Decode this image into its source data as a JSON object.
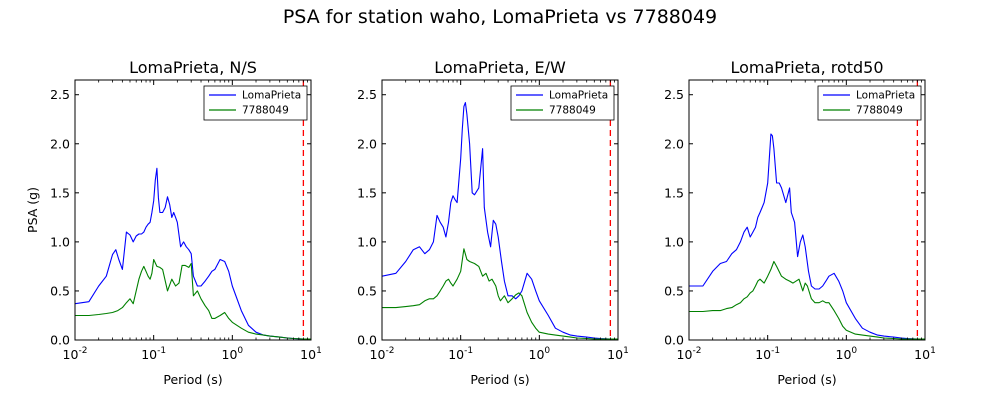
{
  "figure": {
    "title": "PSA for station waho, LomaPrieta vs 7788049",
    "colors": {
      "series1": "#0000ff",
      "series2": "#008000",
      "vline": "#ff0000"
    }
  },
  "chart_data": [
    {
      "type": "line",
      "title": "LomaPrieta, N/S",
      "xlabel": "Period (s)",
      "ylabel": "PSA (g)",
      "xscale": "log",
      "xlim": [
        0.01,
        10
      ],
      "ylim": [
        0,
        2.65
      ],
      "xticks": [
        {
          "base": "10",
          "exp": "-2",
          "v": 0.01
        },
        {
          "base": "10",
          "exp": "-1",
          "v": 0.1
        },
        {
          "base": "10",
          "exp": "0",
          "v": 1
        },
        {
          "base": "10",
          "exp": "1",
          "v": 10
        }
      ],
      "yticks": [
        "0.0",
        "0.5",
        "1.0",
        "1.5",
        "2.0",
        "2.5"
      ],
      "vline_x": 8,
      "legend_position": "upper-right",
      "series": [
        {
          "name": "LomaPrieta",
          "x": [
            0.01,
            0.015,
            0.02,
            0.025,
            0.03,
            0.033,
            0.036,
            0.04,
            0.045,
            0.05,
            0.055,
            0.06,
            0.065,
            0.07,
            0.075,
            0.08,
            0.085,
            0.09,
            0.095,
            0.1,
            0.105,
            0.11,
            0.115,
            0.12,
            0.13,
            0.14,
            0.15,
            0.16,
            0.17,
            0.18,
            0.19,
            0.2,
            0.22,
            0.24,
            0.26,
            0.28,
            0.3,
            0.32,
            0.36,
            0.4,
            0.45,
            0.5,
            0.55,
            0.6,
            0.7,
            0.8,
            0.9,
            1.0,
            1.3,
            1.6,
            2,
            2.5,
            3,
            4,
            5,
            6,
            8,
            10
          ],
          "y": [
            0.37,
            0.39,
            0.55,
            0.65,
            0.87,
            0.92,
            0.82,
            0.72,
            1.1,
            1.07,
            1.0,
            1.06,
            1.08,
            1.08,
            1.1,
            1.15,
            1.18,
            1.2,
            1.3,
            1.42,
            1.63,
            1.75,
            1.45,
            1.3,
            1.3,
            1.35,
            1.46,
            1.38,
            1.25,
            1.3,
            1.25,
            1.2,
            0.95,
            1.0,
            0.95,
            0.92,
            0.88,
            0.65,
            0.55,
            0.55,
            0.6,
            0.65,
            0.7,
            0.72,
            0.82,
            0.8,
            0.7,
            0.55,
            0.3,
            0.15,
            0.08,
            0.05,
            0.04,
            0.03,
            0.02,
            0.015,
            0.01,
            0.01
          ]
        },
        {
          "name": "7788049",
          "x": [
            0.01,
            0.015,
            0.02,
            0.025,
            0.03,
            0.035,
            0.04,
            0.045,
            0.05,
            0.055,
            0.06,
            0.065,
            0.07,
            0.075,
            0.08,
            0.085,
            0.09,
            0.095,
            0.1,
            0.11,
            0.12,
            0.13,
            0.15,
            0.17,
            0.19,
            0.21,
            0.23,
            0.25,
            0.28,
            0.3,
            0.32,
            0.36,
            0.4,
            0.45,
            0.5,
            0.55,
            0.6,
            0.7,
            0.8,
            0.9,
            1.0,
            1.3,
            1.6,
            2,
            2.5,
            3,
            4,
            5,
            6,
            8,
            10
          ],
          "y": [
            0.25,
            0.25,
            0.26,
            0.27,
            0.28,
            0.3,
            0.33,
            0.38,
            0.42,
            0.37,
            0.5,
            0.62,
            0.7,
            0.75,
            0.7,
            0.65,
            0.62,
            0.68,
            0.82,
            0.75,
            0.74,
            0.72,
            0.5,
            0.62,
            0.55,
            0.58,
            0.76,
            0.76,
            0.74,
            0.78,
            0.45,
            0.5,
            0.42,
            0.35,
            0.3,
            0.22,
            0.22,
            0.25,
            0.28,
            0.22,
            0.18,
            0.12,
            0.08,
            0.06,
            0.05,
            0.04,
            0.03,
            0.02,
            0.015,
            0.01,
            0.01
          ]
        }
      ]
    },
    {
      "type": "line",
      "title": "LomaPrieta, E/W",
      "xlabel": "Period (s)",
      "xscale": "log",
      "xlim": [
        0.01,
        10
      ],
      "ylim": [
        0,
        2.65
      ],
      "xticks": [
        {
          "base": "10",
          "exp": "-2",
          "v": 0.01
        },
        {
          "base": "10",
          "exp": "-1",
          "v": 0.1
        },
        {
          "base": "10",
          "exp": "0",
          "v": 1
        },
        {
          "base": "10",
          "exp": "1",
          "v": 10
        }
      ],
      "yticks": [
        "0.0",
        "0.5",
        "1.0",
        "1.5",
        "2.0",
        "2.5"
      ],
      "vline_x": 8,
      "legend_position": "upper-right",
      "series": [
        {
          "name": "LomaPrieta",
          "x": [
            0.01,
            0.015,
            0.02,
            0.025,
            0.03,
            0.035,
            0.04,
            0.045,
            0.05,
            0.055,
            0.06,
            0.065,
            0.07,
            0.075,
            0.08,
            0.085,
            0.09,
            0.1,
            0.105,
            0.11,
            0.115,
            0.12,
            0.13,
            0.14,
            0.15,
            0.17,
            0.19,
            0.2,
            0.22,
            0.24,
            0.26,
            0.28,
            0.3,
            0.33,
            0.36,
            0.4,
            0.45,
            0.5,
            0.55,
            0.6,
            0.7,
            0.8,
            0.9,
            1.0,
            1.3,
            1.6,
            2,
            2.5,
            3,
            4,
            5,
            6,
            8,
            10
          ],
          "y": [
            0.65,
            0.68,
            0.8,
            0.92,
            0.95,
            0.88,
            0.92,
            1.0,
            1.27,
            1.2,
            1.15,
            1.05,
            1.2,
            1.4,
            1.47,
            1.43,
            1.4,
            1.85,
            2.15,
            2.38,
            2.42,
            2.3,
            2.0,
            1.5,
            1.48,
            1.55,
            1.95,
            1.35,
            1.1,
            0.95,
            1.22,
            1.18,
            1.05,
            0.8,
            0.6,
            0.45,
            0.45,
            0.42,
            0.45,
            0.5,
            0.68,
            0.62,
            0.5,
            0.4,
            0.25,
            0.12,
            0.08,
            0.05,
            0.04,
            0.03,
            0.02,
            0.015,
            0.01,
            0.01
          ]
        },
        {
          "name": "7788049",
          "x": [
            0.01,
            0.015,
            0.02,
            0.025,
            0.03,
            0.035,
            0.04,
            0.045,
            0.05,
            0.055,
            0.06,
            0.065,
            0.07,
            0.075,
            0.08,
            0.09,
            0.1,
            0.11,
            0.12,
            0.13,
            0.15,
            0.17,
            0.19,
            0.21,
            0.23,
            0.25,
            0.28,
            0.3,
            0.32,
            0.36,
            0.4,
            0.45,
            0.5,
            0.55,
            0.6,
            0.7,
            0.8,
            0.9,
            1.0,
            1.3,
            1.6,
            2,
            2.5,
            3,
            4,
            5,
            6,
            8,
            10
          ],
          "y": [
            0.33,
            0.33,
            0.34,
            0.35,
            0.36,
            0.4,
            0.42,
            0.42,
            0.45,
            0.5,
            0.55,
            0.6,
            0.62,
            0.58,
            0.55,
            0.62,
            0.7,
            0.93,
            0.82,
            0.8,
            0.78,
            0.75,
            0.65,
            0.68,
            0.6,
            0.62,
            0.55,
            0.45,
            0.4,
            0.45,
            0.38,
            0.42,
            0.46,
            0.48,
            0.45,
            0.28,
            0.18,
            0.12,
            0.08,
            0.06,
            0.05,
            0.04,
            0.03,
            0.02,
            0.015,
            0.01,
            0.01,
            0.01,
            0.01
          ]
        }
      ]
    },
    {
      "type": "line",
      "title": "LomaPrieta, rotd50",
      "xlabel": "Period (s)",
      "xscale": "log",
      "xlim": [
        0.01,
        10
      ],
      "ylim": [
        0,
        2.65
      ],
      "xticks": [
        {
          "base": "10",
          "exp": "-2",
          "v": 0.01
        },
        {
          "base": "10",
          "exp": "-1",
          "v": 0.1
        },
        {
          "base": "10",
          "exp": "0",
          "v": 1
        },
        {
          "base": "10",
          "exp": "1",
          "v": 10
        }
      ],
      "yticks": [
        "0.0",
        "0.5",
        "1.0",
        "1.5",
        "2.0",
        "2.5"
      ],
      "vline_x": 8,
      "legend_position": "upper-right",
      "series": [
        {
          "name": "LomaPrieta",
          "x": [
            0.01,
            0.015,
            0.02,
            0.025,
            0.03,
            0.035,
            0.04,
            0.045,
            0.05,
            0.055,
            0.06,
            0.065,
            0.07,
            0.075,
            0.08,
            0.085,
            0.09,
            0.1,
            0.105,
            0.11,
            0.115,
            0.12,
            0.13,
            0.14,
            0.15,
            0.17,
            0.19,
            0.2,
            0.22,
            0.24,
            0.26,
            0.28,
            0.3,
            0.33,
            0.36,
            0.4,
            0.45,
            0.5,
            0.55,
            0.6,
            0.7,
            0.8,
            0.9,
            1.0,
            1.3,
            1.6,
            2,
            2.5,
            3,
            4,
            5,
            6,
            8,
            10
          ],
          "y": [
            0.55,
            0.55,
            0.7,
            0.78,
            0.8,
            0.88,
            0.92,
            1.0,
            1.1,
            1.15,
            1.05,
            1.1,
            1.15,
            1.25,
            1.3,
            1.35,
            1.4,
            1.6,
            1.85,
            2.1,
            2.08,
            1.95,
            1.6,
            1.6,
            1.55,
            1.4,
            1.55,
            1.3,
            1.2,
            0.85,
            1.0,
            1.07,
            0.95,
            0.7,
            0.55,
            0.52,
            0.52,
            0.55,
            0.6,
            0.65,
            0.68,
            0.6,
            0.5,
            0.38,
            0.22,
            0.12,
            0.08,
            0.05,
            0.04,
            0.03,
            0.02,
            0.015,
            0.01,
            0.01
          ]
        },
        {
          "name": "7788049",
          "x": [
            0.01,
            0.015,
            0.02,
            0.025,
            0.03,
            0.035,
            0.04,
            0.045,
            0.05,
            0.055,
            0.06,
            0.065,
            0.07,
            0.075,
            0.08,
            0.09,
            0.1,
            0.11,
            0.12,
            0.13,
            0.15,
            0.17,
            0.19,
            0.21,
            0.23,
            0.25,
            0.28,
            0.3,
            0.32,
            0.36,
            0.4,
            0.45,
            0.5,
            0.55,
            0.6,
            0.7,
            0.8,
            0.9,
            1.0,
            1.3,
            1.6,
            2,
            2.5,
            3,
            4,
            5,
            6,
            8,
            10
          ],
          "y": [
            0.29,
            0.29,
            0.3,
            0.3,
            0.32,
            0.33,
            0.36,
            0.38,
            0.42,
            0.44,
            0.48,
            0.5,
            0.55,
            0.6,
            0.62,
            0.58,
            0.65,
            0.72,
            0.8,
            0.75,
            0.65,
            0.62,
            0.6,
            0.58,
            0.6,
            0.62,
            0.5,
            0.58,
            0.55,
            0.42,
            0.38,
            0.38,
            0.4,
            0.38,
            0.38,
            0.3,
            0.22,
            0.14,
            0.1,
            0.06,
            0.05,
            0.04,
            0.03,
            0.02,
            0.015,
            0.01,
            0.01,
            0.01,
            0.01
          ]
        }
      ]
    }
  ]
}
